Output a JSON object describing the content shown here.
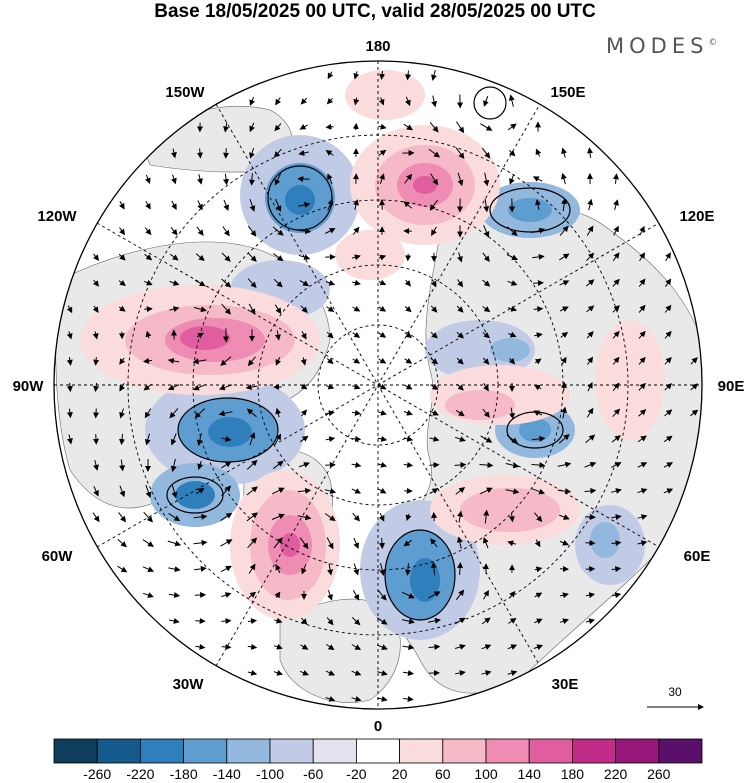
{
  "title": "Base 18/05/2025 00 UTC, valid 28/05/2025 00 UTC",
  "brand": "MODES",
  "longitude_labels": {
    "top": "180",
    "bottom": "0",
    "left": "90W",
    "right": "90E",
    "upper_left_1": "150W",
    "upper_left_2": "120W",
    "upper_right_1": "150E",
    "upper_right_2": "120E",
    "lower_left_1": "60W",
    "lower_left_2": "30W",
    "lower_right_1": "60E",
    "lower_right_2": "30E"
  },
  "reference_vector_label": "30",
  "colorbar": {
    "ticks": [
      "-260",
      "-220",
      "-180",
      "-140",
      "-100",
      "-60",
      "-20",
      "20",
      "60",
      "100",
      "140",
      "180",
      "220",
      "260"
    ],
    "colors": [
      "#0f3d5c",
      "#145a8c",
      "#2f7fbd",
      "#5e9dcf",
      "#93b8dd",
      "#c2cbe6",
      "#e3e3f0",
      "#ffffff",
      "#fadcdc",
      "#f6b9c7",
      "#ee8cb3",
      "#e05ea0",
      "#c12c89",
      "#96167a",
      "#5a0f6b"
    ]
  },
  "colors": {
    "land": "#e9e9e9",
    "ocean": "#ffffff",
    "grid": "#000000"
  },
  "anomaly_features": [
    {
      "sign": "negative",
      "level": 5
    },
    {
      "sign": "negative",
      "level": 4
    },
    {
      "sign": "negative",
      "level": 4
    },
    {
      "sign": "negative",
      "level": 5
    },
    {
      "sign": "negative",
      "level": 4
    },
    {
      "sign": "negative",
      "level": 3
    },
    {
      "sign": "negative",
      "level": 3
    },
    {
      "sign": "negative",
      "level": 3
    },
    {
      "sign": "negative",
      "level": 2
    },
    {
      "sign": "positive",
      "level": 5
    },
    {
      "sign": "positive",
      "level": 5
    },
    {
      "sign": "positive",
      "level": 5
    },
    {
      "sign": "positive",
      "level": 3
    },
    {
      "sign": "positive",
      "level": 3
    },
    {
      "sign": "positive",
      "level": 2
    },
    {
      "sign": "positive",
      "level": 2
    },
    {
      "sign": "positive",
      "level": 2
    }
  ]
}
